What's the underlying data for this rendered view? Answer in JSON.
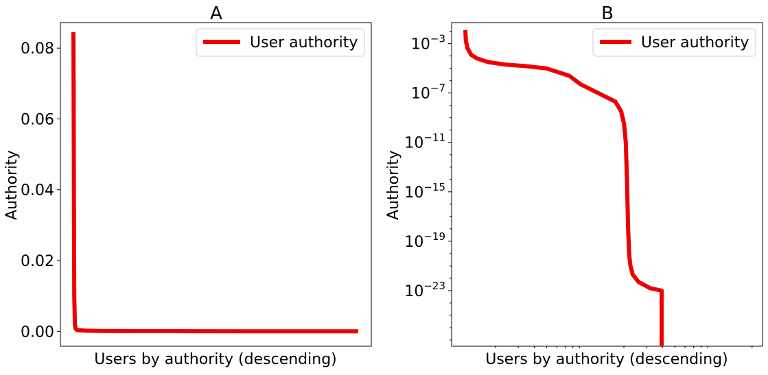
{
  "chart_data": [
    {
      "type": "line",
      "title": "A",
      "xlabel": "Users by authority (descending)",
      "ylabel": "Authority",
      "yscale": "linear",
      "ylim": [
        -0.0042,
        0.0872
      ],
      "yticks": [
        0.0,
        0.02,
        0.04,
        0.06,
        0.08
      ],
      "ytick_labels": [
        "0.00",
        "0.02",
        "0.04",
        "0.06",
        "0.08"
      ],
      "xticks_shown": false,
      "grid": false,
      "legend_position": "top-right",
      "color": "#ee0000",
      "series": [
        {
          "name": "User authority",
          "x": [
            0,
            1,
            2,
            3,
            5,
            8,
            12,
            20,
            40,
            100,
            200,
            400,
            600,
            800,
            1000
          ],
          "y": [
            0.0845,
            0.06,
            0.03,
            0.01,
            0.002,
            0.0007,
            0.0004,
            0.0003,
            0.0002,
            0.0001,
            7e-05,
            4e-05,
            2e-05,
            1e-05,
            5e-06
          ]
        }
      ]
    },
    {
      "type": "line",
      "title": "B",
      "xlabel": "Users by authority (descending)",
      "ylabel": "Authority",
      "yscale": "log",
      "ylim": [
        -27.5,
        -1.3
      ],
      "ytick_exponents": [
        -3,
        -7,
        -11,
        -15,
        -19,
        -23
      ],
      "ytick_base": "10",
      "ytick_labels": [
        "−3",
        "−7",
        "−11",
        "−15",
        "−19",
        "−23"
      ],
      "xticks_shown": false,
      "grid": false,
      "legend_position": "top-right",
      "color": "#ee0000",
      "series": [
        {
          "name": "User authority",
          "x": [
            0,
            1,
            4,
            10,
            20,
            40,
            70,
            100,
            140,
            180,
            200,
            230,
            260,
            270,
            275,
            278,
            280,
            282,
            284,
            286,
            290,
            300,
            320,
            340
          ],
          "log10_y": [
            -1.9,
            -2.8,
            -3.4,
            -3.9,
            -4.2,
            -4.5,
            -4.7,
            -4.8,
            -5.0,
            -5.6,
            -6.3,
            -7.0,
            -7.7,
            -8.5,
            -9.5,
            -11,
            -14,
            -18,
            -20.2,
            -21,
            -21.7,
            -22.3,
            -22.8,
            -23.0
          ]
        }
      ]
    }
  ]
}
